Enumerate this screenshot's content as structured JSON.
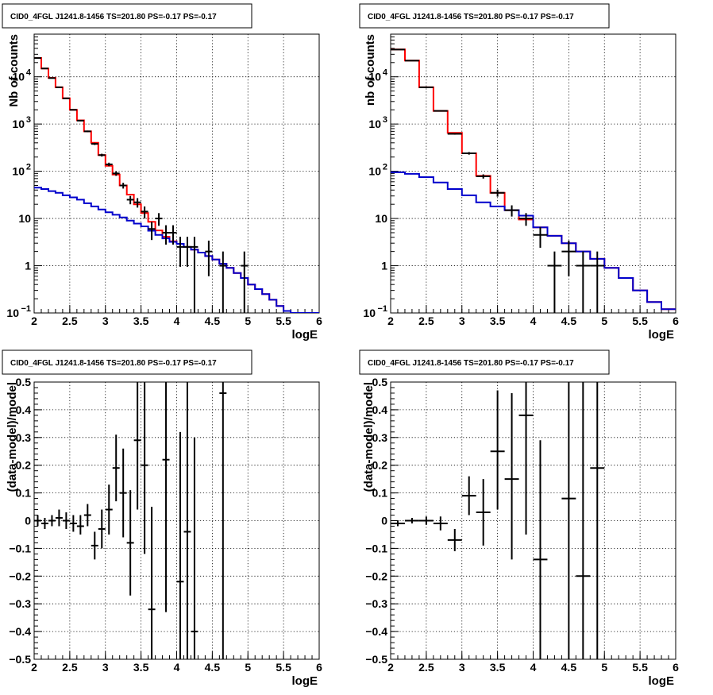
{
  "chart_data": [
    {
      "id": "tl",
      "type": "line",
      "title": "CID0_4FGL J1241.8-1456 TS=201.80 PS=-0.17 PS=-0.17",
      "xlabel": "logE",
      "ylabel": "Nb of counts",
      "xlim": [
        2,
        6
      ],
      "ylim": [
        0.1,
        80000
      ],
      "yscale": "log",
      "grid": true,
      "x_ticks": [
        "2",
        "2.5",
        "3",
        "3.5",
        "4",
        "4.5",
        "5",
        "5.5",
        "6"
      ],
      "y_ticks": [
        {
          "v": 0.1,
          "base": "10",
          "exp": "−1"
        },
        {
          "v": 1,
          "label": "1"
        },
        {
          "v": 10,
          "label": "10"
        },
        {
          "v": 100,
          "base": "10",
          "exp": "2"
        },
        {
          "v": 1000,
          "base": "10",
          "exp": "3"
        },
        {
          "v": 10000,
          "base": "10",
          "exp": "4"
        }
      ],
      "bin_edges": [
        2.0,
        2.1,
        2.2,
        2.3,
        2.4,
        2.5,
        2.6,
        2.7,
        2.8,
        2.9,
        3.0,
        3.1,
        3.2,
        3.3,
        3.4,
        3.5,
        3.6,
        3.7,
        3.8,
        3.9,
        4.0,
        4.1,
        4.2,
        4.3,
        4.4,
        4.5,
        4.6,
        4.7,
        4.8,
        4.9,
        5.0,
        5.1,
        5.2,
        5.3,
        5.4,
        5.5,
        5.6,
        5.7,
        5.8,
        5.9,
        6.0
      ],
      "series": [
        {
          "name": "",
          "color": "#ff0000",
          "kind": "step",
          "values": [
            25000,
            15000,
            9500,
            6000,
            3500,
            2000,
            1200,
            700,
            400,
            220,
            130,
            85,
            50,
            32,
            20,
            13,
            8.5,
            5.6,
            4.1,
            3.3,
            2.9,
            2.5,
            2.2,
            1.9,
            1.6,
            1.35,
            1.1,
            0.9,
            0.7,
            0.55,
            0.4,
            0.32,
            0.25,
            0.19,
            0.14,
            0.11,
            0.1,
            0.1,
            0.1,
            0.1
          ]
        },
        {
          "name": "",
          "color": "#0000cc",
          "kind": "step",
          "values": [
            45,
            42,
            38,
            35,
            31,
            28,
            25,
            21,
            18,
            15.5,
            13.5,
            12,
            10.5,
            9,
            7.8,
            6.8,
            5.5,
            4.5,
            3.8,
            3.2,
            2.9,
            2.5,
            2.2,
            1.9,
            1.6,
            1.35,
            1.1,
            0.9,
            0.7,
            0.55,
            0.4,
            0.32,
            0.25,
            0.19,
            0.14,
            0.11,
            0.1,
            0.1,
            0.1,
            0.1
          ]
        }
      ],
      "points": [
        {
          "x": 2.05,
          "y": 25000,
          "lo": 24800,
          "hi": 25200
        },
        {
          "x": 2.15,
          "y": 15000,
          "lo": 14850,
          "hi": 15150
        },
        {
          "x": 2.25,
          "y": 9400,
          "lo": 9300,
          "hi": 9500
        },
        {
          "x": 2.35,
          "y": 6000,
          "lo": 5920,
          "hi": 6080
        },
        {
          "x": 2.45,
          "y": 3500,
          "lo": 3440,
          "hi": 3560
        },
        {
          "x": 2.55,
          "y": 2000,
          "lo": 1955,
          "hi": 2045
        },
        {
          "x": 2.65,
          "y": 1180,
          "lo": 1145,
          "hi": 1215
        },
        {
          "x": 2.75,
          "y": 700,
          "lo": 674,
          "hi": 726
        },
        {
          "x": 2.85,
          "y": 380,
          "lo": 360,
          "hi": 400
        },
        {
          "x": 2.95,
          "y": 220,
          "lo": 205,
          "hi": 235
        },
        {
          "x": 3.05,
          "y": 140,
          "lo": 128,
          "hi": 152
        },
        {
          "x": 3.15,
          "y": 90,
          "lo": 80,
          "hi": 100
        },
        {
          "x": 3.25,
          "y": 50,
          "lo": 43,
          "hi": 57
        },
        {
          "x": 3.35,
          "y": 25,
          "lo": 20,
          "hi": 30
        },
        {
          "x": 3.45,
          "y": 22,
          "lo": 17,
          "hi": 27
        },
        {
          "x": 3.55,
          "y": 14,
          "lo": 10,
          "hi": 18
        },
        {
          "x": 3.65,
          "y": 6,
          "lo": 3.5,
          "hi": 8.5
        },
        {
          "x": 3.75,
          "y": 10,
          "lo": 7,
          "hi": 13
        },
        {
          "x": 3.85,
          "y": 5,
          "lo": 2.8,
          "hi": 7.2
        },
        {
          "x": 3.95,
          "y": 5,
          "lo": 2.8,
          "hi": 7.2
        },
        {
          "x": 4.05,
          "y": 2.5,
          "lo": 0.95,
          "hi": 4.1
        },
        {
          "x": 4.15,
          "y": 2.5,
          "lo": 0.95,
          "hi": 4.1
        },
        {
          "x": 4.25,
          "y": 2.5,
          "lo": 0.1,
          "hi": 4.1
        },
        {
          "x": 4.45,
          "y": 2,
          "lo": 0.6,
          "hi": 3.4
        },
        {
          "x": 4.65,
          "y": 1,
          "lo": 0.1,
          "hi": 2.0
        },
        {
          "x": 4.95,
          "y": 1,
          "lo": 0.1,
          "hi": 2.0
        }
      ]
    },
    {
      "id": "tr",
      "type": "line",
      "title": "CID0_4FGL J1241.8-1456 TS=201.80 PS=-0.17 PS=-0.17",
      "xlabel": "logE",
      "ylabel": "nb of counts",
      "xlim": [
        2,
        6
      ],
      "ylim": [
        0.1,
        80000
      ],
      "yscale": "log",
      "grid": true,
      "x_ticks": [
        "2",
        "2.5",
        "3",
        "3.5",
        "4",
        "4.5",
        "5",
        "5.5",
        "6"
      ],
      "y_ticks": [
        {
          "v": 0.1,
          "base": "10",
          "exp": "−1"
        },
        {
          "v": 1,
          "label": "1"
        },
        {
          "v": 10,
          "label": "10"
        },
        {
          "v": 100,
          "base": "10",
          "exp": "2"
        },
        {
          "v": 1000,
          "base": "10",
          "exp": "3"
        },
        {
          "v": 10000,
          "base": "10",
          "exp": "4"
        }
      ],
      "bin_edges": [
        2.0,
        2.2,
        2.4,
        2.6,
        2.8,
        3.0,
        3.2,
        3.4,
        3.6,
        3.8,
        4.0,
        4.2,
        4.4,
        4.6,
        4.8,
        5.0,
        5.2,
        5.4,
        5.6,
        5.8,
        6.0
      ],
      "series": [
        {
          "name": "",
          "color": "#ff0000",
          "kind": "step",
          "values": [
            38000,
            22000,
            6000,
            1900,
            650,
            240,
            80,
            35,
            15,
            9.5,
            6.5,
            4.3,
            3.0,
            2.0,
            1.4,
            0.9,
            0.55,
            0.3,
            0.17,
            0.12
          ]
        },
        {
          "name": "",
          "color": "#0000cc",
          "kind": "step",
          "values": [
            95,
            88,
            75,
            58,
            42,
            31,
            22,
            18,
            15,
            11.5,
            6.5,
            4.3,
            3.0,
            2.0,
            1.4,
            0.9,
            0.55,
            0.3,
            0.17,
            0.12
          ]
        }
      ],
      "points": [
        {
          "x": 2.1,
          "y": 37800,
          "lo": 37600,
          "hi": 38000
        },
        {
          "x": 2.3,
          "y": 22000,
          "lo": 21850,
          "hi": 22150
        },
        {
          "x": 2.5,
          "y": 6000,
          "lo": 5920,
          "hi": 6080
        },
        {
          "x": 2.7,
          "y": 1900,
          "lo": 1855,
          "hi": 1945
        },
        {
          "x": 2.9,
          "y": 620,
          "lo": 595,
          "hi": 645
        },
        {
          "x": 3.1,
          "y": 240,
          "lo": 225,
          "hi": 255
        },
        {
          "x": 3.3,
          "y": 78,
          "lo": 70,
          "hi": 86
        },
        {
          "x": 3.5,
          "y": 35,
          "lo": 29,
          "hi": 41
        },
        {
          "x": 3.7,
          "y": 15,
          "lo": 11,
          "hi": 19
        },
        {
          "x": 3.9,
          "y": 10,
          "lo": 7,
          "hi": 13
        },
        {
          "x": 4.1,
          "y": 4.5,
          "lo": 2.4,
          "hi": 6.6
        },
        {
          "x": 4.3,
          "y": 1,
          "lo": 0.1,
          "hi": 2.0
        },
        {
          "x": 4.5,
          "y": 2,
          "lo": 0.6,
          "hi": 3.4
        },
        {
          "x": 4.7,
          "y": 1,
          "lo": 0.1,
          "hi": 2.0
        },
        {
          "x": 4.9,
          "y": 1,
          "lo": 0.1,
          "hi": 2.0
        }
      ]
    },
    {
      "id": "bl",
      "type": "scatter",
      "title": "CID0_4FGL J1241.8-1456 TS=201.80 PS=-0.17 PS=-0.17",
      "xlabel": "logE",
      "ylabel": "(data-model)/model",
      "xlim": [
        2,
        6
      ],
      "ylim": [
        -0.5,
        0.5
      ],
      "yscale": "linear",
      "grid": true,
      "x_ticks": [
        "2",
        "2.5",
        "3",
        "3.5",
        "4",
        "4.5",
        "5",
        "5.5",
        "6"
      ],
      "y_ticks": [
        {
          "v": -0.5,
          "label": "−0.5"
        },
        {
          "v": -0.4,
          "label": "−0.4"
        },
        {
          "v": -0.3,
          "label": "−0.3"
        },
        {
          "v": -0.2,
          "label": "−0.2"
        },
        {
          "v": -0.1,
          "label": "−0.1"
        },
        {
          "v": 0,
          "label": "0"
        },
        {
          "v": 0.1,
          "label": "0.1"
        },
        {
          "v": 0.2,
          "label": "0.2"
        },
        {
          "v": 0.3,
          "label": "0.3"
        },
        {
          "v": 0.4,
          "label": "0.4"
        },
        {
          "v": 0.5,
          "label": "0.5"
        }
      ],
      "half_width": 0.05,
      "points": [
        {
          "x": 2.05,
          "y": 0.0,
          "lo": -0.02,
          "hi": 0.02
        },
        {
          "x": 2.15,
          "y": -0.01,
          "lo": -0.03,
          "hi": 0.01
        },
        {
          "x": 2.25,
          "y": 0.0,
          "lo": -0.02,
          "hi": 0.02
        },
        {
          "x": 2.35,
          "y": 0.01,
          "lo": -0.02,
          "hi": 0.04
        },
        {
          "x": 2.45,
          "y": 0.0,
          "lo": -0.03,
          "hi": 0.03
        },
        {
          "x": 2.55,
          "y": -0.01,
          "lo": -0.04,
          "hi": 0.02
        },
        {
          "x": 2.65,
          "y": -0.02,
          "lo": -0.05,
          "hi": 0.02
        },
        {
          "x": 2.75,
          "y": 0.02,
          "lo": -0.02,
          "hi": 0.06
        },
        {
          "x": 2.85,
          "y": -0.09,
          "lo": -0.14,
          "hi": -0.04
        },
        {
          "x": 2.95,
          "y": -0.03,
          "lo": -0.1,
          "hi": 0.04
        },
        {
          "x": 3.05,
          "y": 0.04,
          "lo": -0.05,
          "hi": 0.13
        },
        {
          "x": 3.15,
          "y": 0.19,
          "lo": 0.07,
          "hi": 0.31
        },
        {
          "x": 3.25,
          "y": 0.1,
          "lo": -0.06,
          "hi": 0.26
        },
        {
          "x": 3.35,
          "y": -0.08,
          "lo": -0.27,
          "hi": 0.11
        },
        {
          "x": 3.45,
          "y": 0.29,
          "lo": 0.04,
          "hi": 0.5
        },
        {
          "x": 3.55,
          "y": 0.2,
          "lo": -0.12,
          "hi": 0.5
        },
        {
          "x": 3.65,
          "y": -0.32,
          "lo": -0.5,
          "hi": 0.05
        },
        {
          "x": 3.85,
          "y": 0.22,
          "lo": -0.33,
          "hi": 0.5
        },
        {
          "x": 4.05,
          "y": -0.22,
          "lo": -0.5,
          "hi": 0.32
        },
        {
          "x": 4.15,
          "y": -0.04,
          "lo": -0.5,
          "hi": 0.5
        },
        {
          "x": 4.25,
          "y": -0.4,
          "lo": -0.5,
          "hi": 0.3
        },
        {
          "x": 4.65,
          "y": 0.46,
          "lo": -0.5,
          "hi": 0.5
        }
      ]
    },
    {
      "id": "br",
      "type": "scatter",
      "title": "CID0_4FGL J1241.8-1456 TS=201.80 PS=-0.17 PS=-0.17",
      "xlabel": "logE",
      "ylabel": "(data-model)/model",
      "xlim": [
        2,
        6
      ],
      "ylim": [
        -0.5,
        0.5
      ],
      "yscale": "linear",
      "grid": true,
      "x_ticks": [
        "2",
        "2.5",
        "3",
        "3.5",
        "4",
        "4.5",
        "5",
        "5.5",
        "6"
      ],
      "y_ticks": [
        {
          "v": -0.5,
          "label": "−0.5"
        },
        {
          "v": -0.4,
          "label": "−0.4"
        },
        {
          "v": -0.3,
          "label": "−0.3"
        },
        {
          "v": -0.2,
          "label": "−0.2"
        },
        {
          "v": -0.1,
          "label": "−0.1"
        },
        {
          "v": 0,
          "label": "0"
        },
        {
          "v": 0.1,
          "label": "0.1"
        },
        {
          "v": 0.2,
          "label": "0.2"
        },
        {
          "v": 0.3,
          "label": "0.3"
        },
        {
          "v": 0.4,
          "label": "0.4"
        },
        {
          "v": 0.5,
          "label": "0.5"
        }
      ],
      "half_width": 0.1,
      "points": [
        {
          "x": 2.1,
          "y": -0.01,
          "lo": -0.02,
          "hi": 0.0
        },
        {
          "x": 2.3,
          "y": 0.0,
          "lo": -0.01,
          "hi": 0.01
        },
        {
          "x": 2.5,
          "y": 0.0,
          "lo": -0.015,
          "hi": 0.015
        },
        {
          "x": 2.7,
          "y": -0.01,
          "lo": -0.035,
          "hi": 0.015
        },
        {
          "x": 2.9,
          "y": -0.07,
          "lo": -0.11,
          "hi": -0.03
        },
        {
          "x": 3.1,
          "y": 0.09,
          "lo": 0.02,
          "hi": 0.16
        },
        {
          "x": 3.3,
          "y": 0.03,
          "lo": -0.09,
          "hi": 0.15
        },
        {
          "x": 3.5,
          "y": 0.25,
          "lo": 0.04,
          "hi": 0.47
        },
        {
          "x": 3.7,
          "y": 0.15,
          "lo": -0.14,
          "hi": 0.46
        },
        {
          "x": 3.9,
          "y": 0.38,
          "lo": -0.05,
          "hi": 0.5
        },
        {
          "x": 4.1,
          "y": -0.14,
          "lo": -0.5,
          "hi": 0.29
        },
        {
          "x": 4.5,
          "y": 0.08,
          "lo": -0.5,
          "hi": 0.5
        },
        {
          "x": 4.7,
          "y": -0.2,
          "lo": -0.5,
          "hi": 0.5
        },
        {
          "x": 4.9,
          "y": 0.19,
          "lo": -0.5,
          "hi": 0.5
        }
      ]
    }
  ]
}
